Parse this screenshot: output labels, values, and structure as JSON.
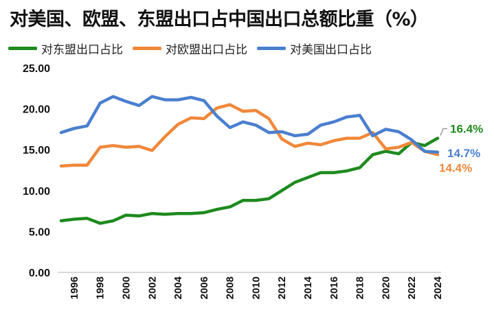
{
  "chart_data": {
    "type": "line",
    "title": "对美国、欧盟、东盟出口占中国出口总额比重（%）",
    "xlabel": "",
    "ylabel": "",
    "ylim": [
      0,
      25
    ],
    "y_ticks": [
      "0.00",
      "5.00",
      "10.00",
      "15.00",
      "20.00",
      "25.00"
    ],
    "x_tick_labels": [
      "1996",
      "1998",
      "2000",
      "2002",
      "2004",
      "2006",
      "2008",
      "2010",
      "2012",
      "2014",
      "2016",
      "2018",
      "2020",
      "2022",
      "2024"
    ],
    "x": [
      1995,
      1996,
      1997,
      1998,
      1999,
      2000,
      2001,
      2002,
      2003,
      2004,
      2005,
      2006,
      2007,
      2008,
      2009,
      2010,
      2011,
      2012,
      2013,
      2014,
      2015,
      2016,
      2017,
      2018,
      2019,
      2020,
      2021,
      2022,
      2023,
      2024
    ],
    "grid": false,
    "legend_position": "top",
    "series": [
      {
        "name": "对东盟出口占比",
        "color": "#1e8a1e",
        "end_label": "16.4%",
        "values": [
          6.3,
          6.5,
          6.6,
          6.0,
          6.3,
          7.0,
          6.9,
          7.2,
          7.1,
          7.2,
          7.2,
          7.3,
          7.7,
          8.0,
          8.8,
          8.8,
          9.0,
          10.0,
          11.0,
          11.6,
          12.2,
          12.2,
          12.4,
          12.8,
          14.4,
          14.8,
          14.5,
          15.9,
          15.5,
          16.4
        ]
      },
      {
        "name": "对欧盟出口占比",
        "color": "#f0883a",
        "end_label": "14.4%",
        "values": [
          13.0,
          13.1,
          13.1,
          15.3,
          15.5,
          15.3,
          15.4,
          14.9,
          16.6,
          18.1,
          18.9,
          18.8,
          20.1,
          20.5,
          19.7,
          19.8,
          18.8,
          16.3,
          15.4,
          15.8,
          15.6,
          16.1,
          16.4,
          16.4,
          17.1,
          15.1,
          15.3,
          15.9,
          14.8,
          14.4
        ]
      },
      {
        "name": "对美国出口占比",
        "color": "#4a7fd0",
        "end_label": "14.7%",
        "values": [
          17.1,
          17.6,
          17.9,
          20.7,
          21.5,
          20.9,
          20.4,
          21.5,
          21.1,
          21.1,
          21.4,
          21.0,
          19.1,
          17.7,
          18.4,
          18.0,
          17.1,
          17.2,
          16.7,
          16.9,
          18.0,
          18.4,
          19.0,
          19.2,
          16.7,
          17.5,
          17.2,
          16.2,
          14.8,
          14.7
        ]
      }
    ]
  }
}
